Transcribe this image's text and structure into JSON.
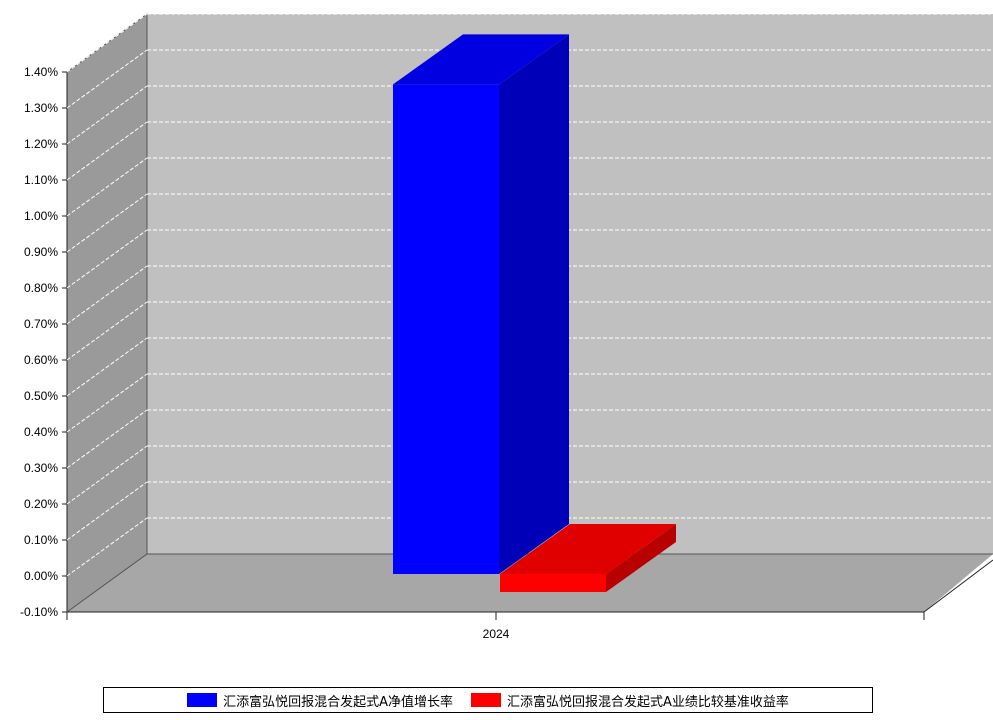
{
  "chart_data": {
    "type": "bar",
    "categories": [
      "2024"
    ],
    "series": [
      {
        "name": "汇添富弘悦回报混合发起式A净值增长率",
        "values": [
          1.36
        ],
        "color": "#0000ff"
      },
      {
        "name": "汇添富弘悦回报混合发起式A业绩比较基准收益率",
        "values": [
          -0.05
        ],
        "color": "#ff0000"
      }
    ],
    "ylim": [
      -0.1,
      1.4
    ],
    "yticks": [
      "-0.10%",
      "0.00%",
      "0.10%",
      "0.20%",
      "0.30%",
      "0.40%",
      "0.50%",
      "0.60%",
      "0.70%",
      "0.80%",
      "0.90%",
      "1.00%",
      "1.10%",
      "1.20%",
      "1.30%",
      "1.40%"
    ],
    "grid": true,
    "legend_position": "bottom",
    "style": "3d"
  }
}
